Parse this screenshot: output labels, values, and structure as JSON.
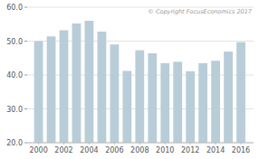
{
  "chart_data": {
    "type": "bar",
    "x": [
      2000,
      2001,
      2002,
      2003,
      2004,
      2005,
      2006,
      2007,
      2008,
      2009,
      2010,
      2011,
      2012,
      2013,
      2014,
      2015,
      2016
    ],
    "values": [
      50.0,
      51.4,
      53.2,
      55.2,
      56.0,
      52.8,
      49.0,
      41.2,
      47.3,
      46.4,
      43.5,
      43.9,
      41.1,
      43.5,
      44.2,
      46.9,
      49.7
    ],
    "color": "#b8cdd8",
    "xlim": [
      1999.1,
      2017.0
    ],
    "xticks": [
      2000,
      2002,
      2004,
      2006,
      2008,
      2010,
      2012,
      2014,
      2016
    ],
    "ylim": [
      20.0,
      60.0
    ],
    "yticks": [
      {
        "value": 20.0,
        "label": "20.0"
      },
      {
        "value": 30.0,
        "label": "30.0"
      },
      {
        "value": 40.0,
        "label": "40.0"
      },
      {
        "value": 50.0,
        "label": "50.0"
      },
      {
        "value": 60.0,
        "label": "60.0"
      }
    ],
    "grid": true,
    "annotations": [
      "© Copyright FocusEconomics 2017"
    ]
  }
}
